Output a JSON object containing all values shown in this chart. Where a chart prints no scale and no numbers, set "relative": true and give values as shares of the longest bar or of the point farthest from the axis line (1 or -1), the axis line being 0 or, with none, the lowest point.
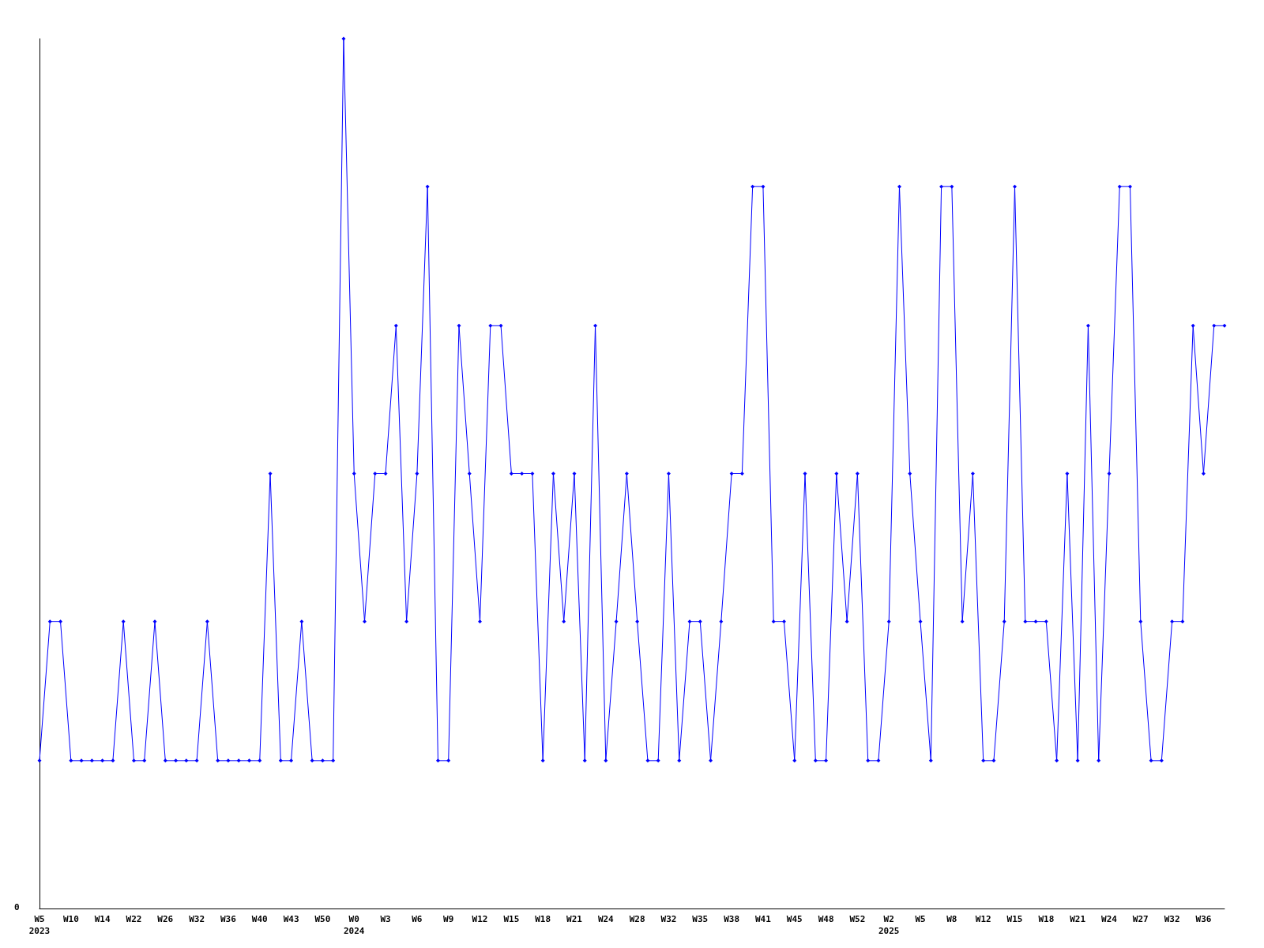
{
  "chart_data": {
    "type": "line",
    "relative": true,
    "marker": "diamond",
    "categories": [
      "W5\n2023",
      null,
      null,
      "W10",
      null,
      null,
      "W14",
      null,
      null,
      "W22",
      null,
      null,
      "W26",
      null,
      null,
      "W32",
      null,
      null,
      "W36",
      null,
      null,
      "W40",
      null,
      null,
      "W43",
      null,
      null,
      "W50",
      null,
      null,
      "W0\n2024",
      null,
      null,
      "W3",
      null,
      null,
      "W6",
      null,
      null,
      "W9",
      null,
      null,
      "W12",
      null,
      null,
      "W15",
      null,
      null,
      "W18",
      null,
      null,
      "W21",
      null,
      null,
      "W24",
      null,
      null,
      "W28",
      null,
      null,
      "W32",
      null,
      null,
      "W35",
      null,
      null,
      "W38",
      null,
      null,
      "W41",
      null,
      null,
      "W45",
      null,
      null,
      "W48",
      null,
      null,
      "W52",
      null,
      null,
      "W2\n2025",
      null,
      null,
      "W5",
      null,
      null,
      "W8",
      null,
      null,
      "W12",
      null,
      null,
      "W15",
      null,
      null,
      "W18",
      null,
      null,
      "W21",
      null,
      null,
      "W24",
      null,
      null,
      "W27",
      null,
      null,
      "W32",
      null,
      null,
      "W36",
      null,
      null
    ],
    "series": [
      {
        "color": "#0000ff",
        "values": [
          0.17,
          0.33,
          0.33,
          0.17,
          0.17,
          0.17,
          0.17,
          0.17,
          0.33,
          0.17,
          0.17,
          0.33,
          0.17,
          0.17,
          0.17,
          0.17,
          0.33,
          0.17,
          0.17,
          0.17,
          0.17,
          0.17,
          0.5,
          0.17,
          0.17,
          0.33,
          0.17,
          0.17,
          0.17,
          1,
          0.5,
          0.33,
          0.5,
          0.5,
          0.67,
          0.33,
          0.5,
          0.83,
          0.17,
          0.17,
          0.67,
          0.5,
          0.33,
          0.67,
          0.67,
          0.5,
          0.5,
          0.5,
          0.17,
          0.5,
          0.33,
          0.5,
          0.17,
          0.67,
          0.17,
          0.33,
          0.5,
          0.33,
          0.17,
          0.17,
          0.5,
          0.17,
          0.33,
          0.33,
          0.17,
          0.33,
          0.5,
          0.5,
          0.83,
          0.83,
          0.33,
          0.33,
          0.17,
          0.5,
          0.17,
          0.17,
          0.5,
          0.33,
          0.5,
          0.17,
          0.17,
          0.33,
          0.83,
          0.5,
          0.33,
          0.17,
          0.83,
          0.83,
          0.33,
          0.5,
          0.17,
          0.17,
          0.33,
          0.83,
          0.33,
          0.33,
          0.33,
          0.17,
          0.5,
          0.17,
          0.67,
          0.17,
          0.5,
          0.83,
          0.83,
          0.33,
          0.17,
          0.17,
          0.33,
          0.33,
          0.67,
          0.5,
          0.67,
          0.67
        ]
      }
    ],
    "annotations": [
      "0"
    ]
  }
}
